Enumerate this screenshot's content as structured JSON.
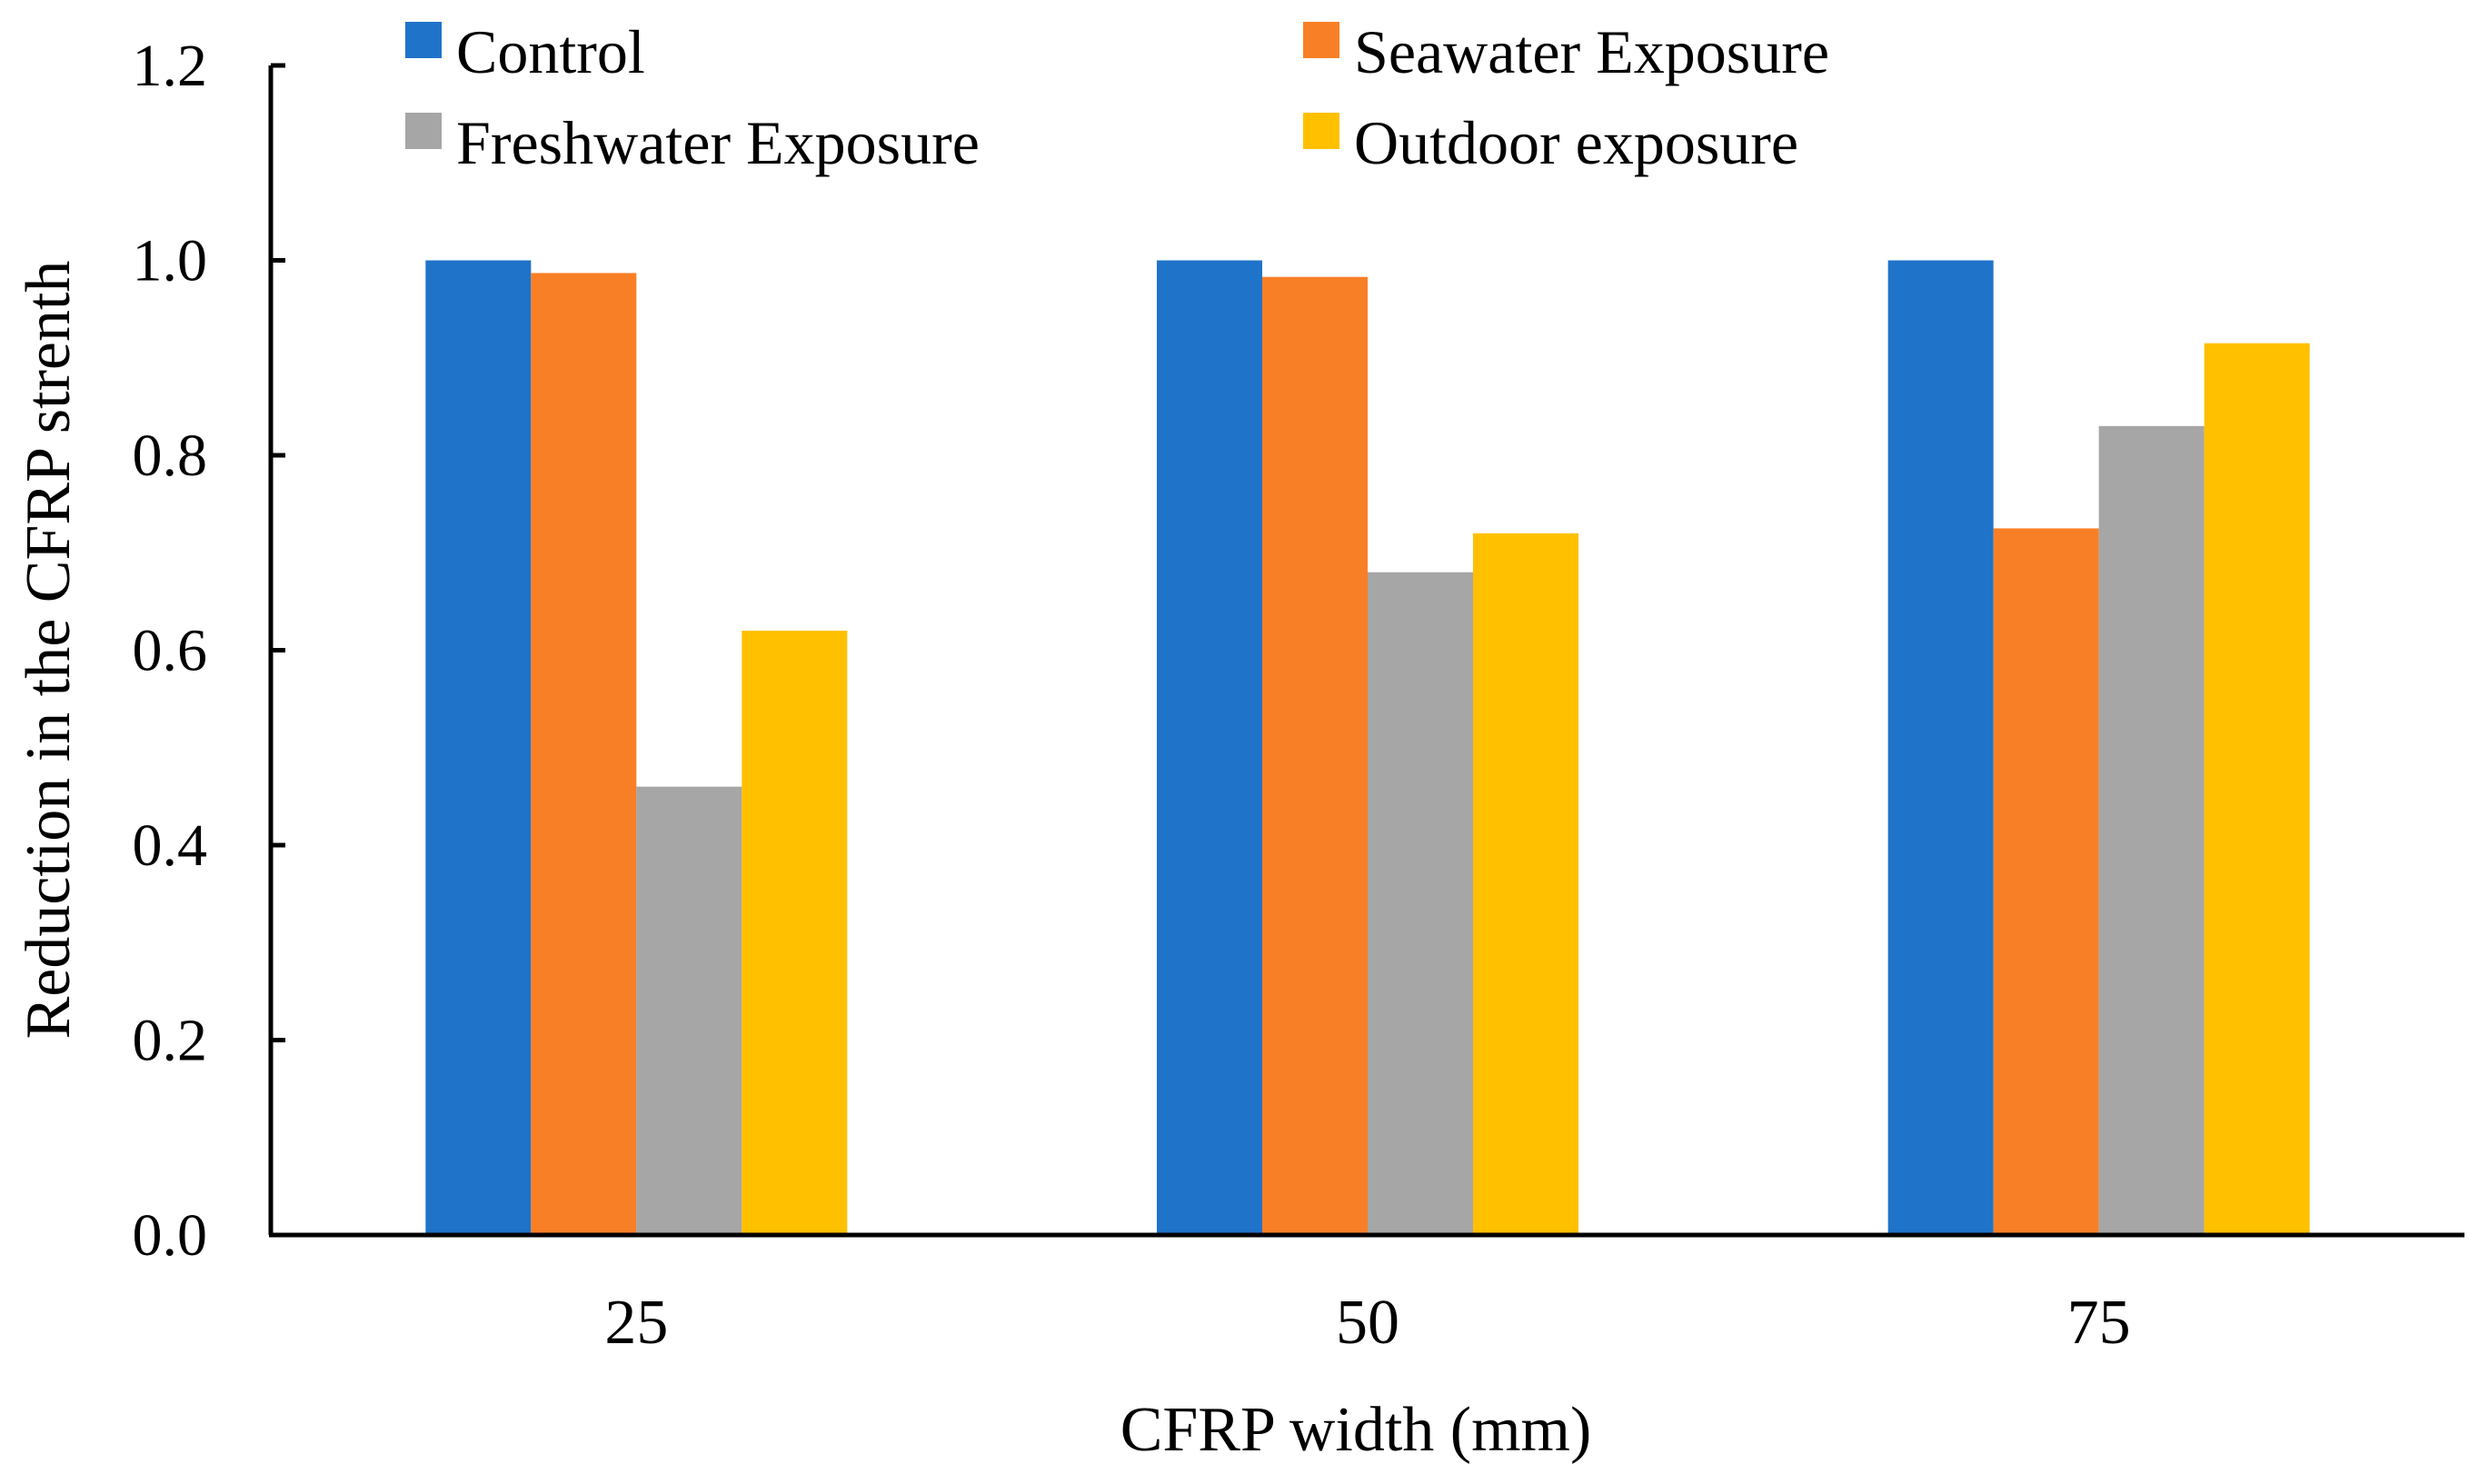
{
  "chart_data": {
    "type": "bar",
    "title": "",
    "xlabel": "CFRP width (mm)",
    "ylabel": "Reduction in the CFRP strenth",
    "categories": [
      "25",
      "50",
      "75"
    ],
    "ylim": [
      0,
      1.2
    ],
    "yticks": [
      "0.0",
      "0.2",
      "0.4",
      "0.6",
      "0.8",
      "1.0",
      "1.2"
    ],
    "grid": false,
    "legend_position": "top",
    "series": [
      {
        "name": "Control",
        "color": "#1f73c9",
        "values": [
          1.0,
          1.0,
          1.0
        ]
      },
      {
        "name": "Seawater Exposure",
        "color": "#f97f26",
        "values": [
          0.987,
          0.983,
          0.725
        ]
      },
      {
        "name": "Freshwater Exposure",
        "color": "#a6a6a6",
        "values": [
          0.46,
          0.68,
          0.83
        ]
      },
      {
        "name": "Outdoor exposure",
        "color": "#ffc000",
        "values": [
          0.62,
          0.72,
          0.915
        ]
      }
    ]
  }
}
